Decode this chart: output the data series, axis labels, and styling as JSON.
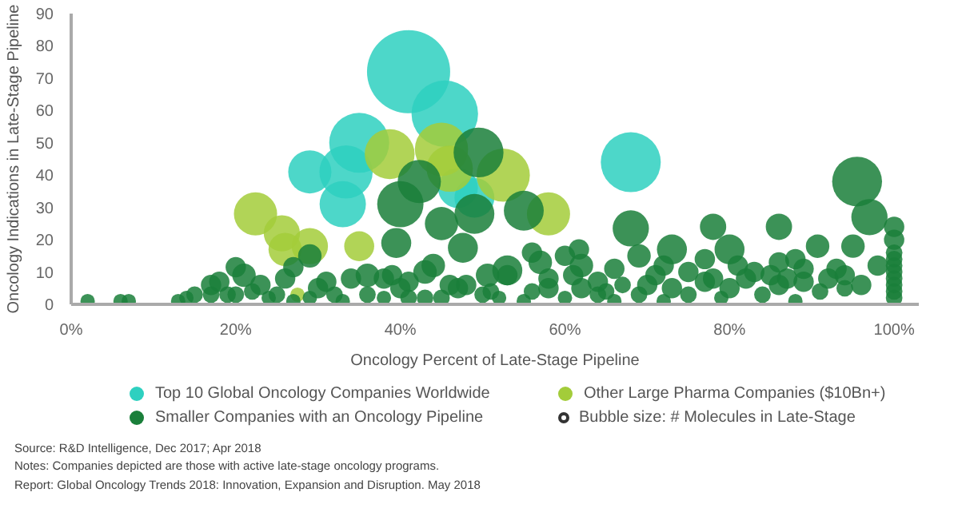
{
  "chart_data": {
    "type": "bubble",
    "xlabel": "Oncology Percent of Late-Stage Pipeline",
    "ylabel": "Oncology Indications in Late-Stage Pipeline",
    "xlim": [
      0,
      103
    ],
    "ylim": [
      0,
      90
    ],
    "xticks": [
      {
        "value": 0,
        "label": "0%"
      },
      {
        "value": 20,
        "label": "20%"
      },
      {
        "value": 40,
        "label": "40%"
      },
      {
        "value": 60,
        "label": "60%"
      },
      {
        "value": 80,
        "label": "80%"
      },
      {
        "value": 100,
        "label": "100%"
      }
    ],
    "yticks": [
      0,
      10,
      20,
      30,
      40,
      50,
      60,
      70,
      80,
      90
    ],
    "grid": false,
    "legend": "bottom",
    "series": [
      {
        "name": "Top 10 Global Oncology Companies Worldwide",
        "color": "#2ed0c0",
        "x": [
          41,
          45.4,
          35,
          29,
          33.4,
          33,
          68,
          47,
          49
        ],
        "values": [
          72,
          59,
          50,
          41,
          41,
          31,
          44,
          36,
          33
        ],
        "sizes": [
          1,
          0.64,
          0.52,
          0.27,
          0.41,
          0.31,
          0.52,
          0.23,
          0.23
        ]
      },
      {
        "name": "Other Large Pharma Companies ($10Bn+)",
        "color": "#a3cc3a",
        "x": [
          22.4,
          25.6,
          29,
          26,
          35,
          38.7,
          45,
          52.5,
          58,
          46,
          27.5
        ],
        "values": [
          28,
          22,
          18,
          17,
          18,
          46.5,
          48,
          40,
          28,
          42,
          3
        ],
        "sizes": [
          0.27,
          0.19,
          0.19,
          0.16,
          0.13,
          0.36,
          0.41,
          0.41,
          0.27,
          0.31,
          0.03
        ]
      },
      {
        "name": "Smaller Companies with an Oncology Pipeline",
        "color": "#1a7f3a",
        "x": [
          49.5,
          42.3,
          40,
          45,
          49,
          47.6,
          39.5,
          29,
          27,
          20,
          55,
          95.5,
          97,
          95,
          100,
          68,
          78,
          86,
          50.6,
          53,
          56,
          61.7,
          69,
          73,
          80,
          90.7,
          86,
          2,
          6,
          7,
          13,
          14,
          15,
          17,
          19,
          20,
          22,
          24,
          25,
          27,
          29,
          30,
          32,
          33,
          36,
          38,
          40,
          41,
          43,
          45,
          47,
          48,
          50,
          52,
          55,
          56,
          58,
          60,
          62,
          64,
          65,
          66,
          69,
          70,
          72,
          73,
          75,
          77,
          79,
          80,
          82,
          84,
          86,
          88,
          89,
          91,
          92,
          94,
          96,
          17,
          18,
          21,
          23,
          26,
          31,
          34,
          36,
          38,
          39,
          41,
          43,
          44,
          46,
          51,
          53,
          57,
          58,
          60,
          61,
          62,
          64,
          66,
          67,
          71,
          72,
          75,
          77,
          78,
          81,
          83,
          85,
          87,
          88,
          89,
          93,
          94,
          98,
          100,
          100,
          100,
          100,
          100,
          100,
          100,
          100,
          100
        ],
        "values": [
          47,
          38,
          31,
          25,
          28,
          17.5,
          19,
          15,
          11.5,
          11.5,
          29,
          38,
          27,
          18,
          24,
          23.5,
          24,
          24,
          9,
          10.5,
          16,
          17,
          15,
          17,
          17,
          18,
          13,
          1,
          1,
          1,
          1,
          2,
          3,
          3,
          3,
          3,
          4,
          2,
          3,
          1,
          2,
          5,
          3,
          1,
          3,
          2,
          5,
          2,
          2,
          2,
          5,
          6,
          3,
          2,
          1,
          4,
          5,
          2,
          5,
          3,
          4,
          1,
          3,
          6,
          1,
          5,
          3,
          7,
          2,
          5,
          8,
          3,
          6,
          1,
          7,
          4,
          8,
          5,
          6,
          6,
          7,
          9,
          6,
          8,
          7,
          8,
          9,
          8,
          9,
          7,
          10,
          12,
          6,
          4,
          9,
          13,
          8,
          15,
          9,
          12,
          7,
          11,
          6,
          9,
          12,
          10,
          14,
          8,
          12,
          10,
          9,
          8,
          14,
          11,
          11,
          9,
          12,
          2,
          4,
          6,
          8,
          10,
          12,
          14,
          16,
          20
        ],
        "sizes": [
          0.36,
          0.27,
          0.31,
          0.16,
          0.23,
          0.13,
          0.13,
          0.08,
          0.06,
          0.06,
          0.23,
          0.36,
          0.19,
          0.08,
          0.06,
          0.19,
          0.1,
          0.1,
          0.08,
          0.13,
          0.06,
          0.06,
          0.08,
          0.13,
          0.13,
          0.08,
          0.06,
          0.03,
          0.03,
          0.03,
          0.03,
          0.03,
          0.04,
          0.04,
          0.04,
          0.04,
          0.04,
          0.03,
          0.04,
          0.03,
          0.03,
          0.06,
          0.04,
          0.03,
          0.04,
          0.03,
          0.06,
          0.04,
          0.04,
          0.04,
          0.06,
          0.06,
          0.04,
          0.03,
          0.03,
          0.04,
          0.06,
          0.03,
          0.06,
          0.04,
          0.04,
          0.03,
          0.04,
          0.06,
          0.03,
          0.06,
          0.04,
          0.06,
          0.03,
          0.06,
          0.06,
          0.04,
          0.06,
          0.03,
          0.06,
          0.04,
          0.06,
          0.04,
          0.06,
          0.06,
          0.06,
          0.08,
          0.06,
          0.06,
          0.06,
          0.06,
          0.08,
          0.06,
          0.06,
          0.06,
          0.08,
          0.08,
          0.06,
          0.04,
          0.06,
          0.08,
          0.06,
          0.06,
          0.06,
          0.08,
          0.06,
          0.06,
          0.04,
          0.06,
          0.06,
          0.06,
          0.06,
          0.06,
          0.06,
          0.06,
          0.06,
          0.06,
          0.06,
          0.06,
          0.06,
          0.06,
          0.06,
          0.04,
          0.04,
          0.04,
          0.04,
          0.04,
          0.04,
          0.04,
          0.04,
          0.06
        ]
      }
    ],
    "annotations": [
      "Bubble size: # Molecules in Late-Stage",
      "Source: R&D Intelligence, Dec 2017; Apr 2018",
      "Notes: Companies depicted are those with active late-stage oncology programs.",
      "Report: Global Oncology Trends 2018: Innovation, Expansion and Disruption. May 2018"
    ]
  }
}
